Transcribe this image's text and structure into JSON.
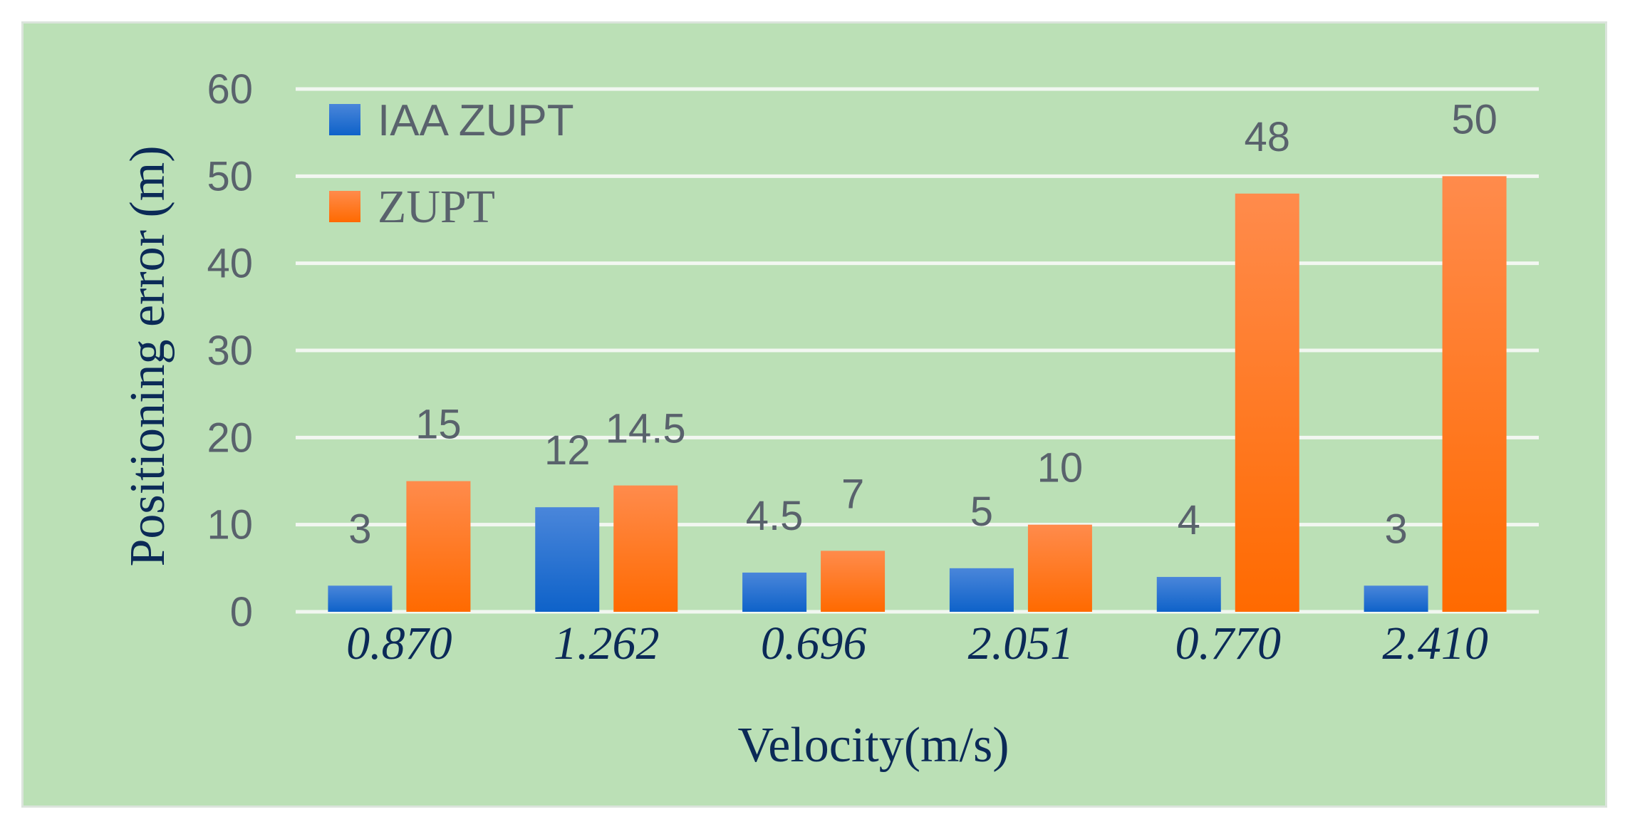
{
  "chart_data": {
    "type": "bar",
    "title": "",
    "xlabel": "Velocity(m/s)",
    "ylabel": "Positioning error (m)",
    "categories": [
      "0.870",
      "1.262",
      "0.696",
      "2.051",
      "0.770",
      "2.410"
    ],
    "series": [
      {
        "name": "IAA ZUPT",
        "values": [
          3,
          12,
          4.5,
          5,
          4,
          3
        ],
        "color": "#2f73cf"
      },
      {
        "name": "ZUPT",
        "values": [
          15,
          14.5,
          7,
          10,
          48,
          50
        ],
        "color": "#ff7a1f"
      }
    ],
    "data_labels": [
      [
        "3",
        "12",
        "4.5",
        "5",
        "4",
        "3"
      ],
      [
        "15",
        "14.5",
        "7",
        "10",
        "48",
        "50"
      ]
    ],
    "ylim": [
      0,
      60
    ],
    "yticks": [
      "0",
      "10",
      "20",
      "30",
      "40",
      "50",
      "60"
    ],
    "grid": true,
    "legend_position": "top-left",
    "background": "#bbe0b6",
    "grid_color": "#f2f7f1"
  }
}
